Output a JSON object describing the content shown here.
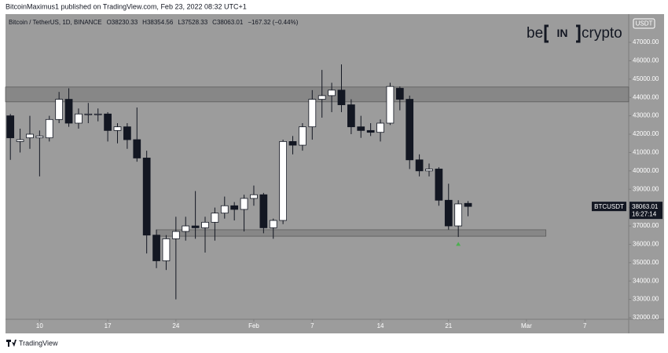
{
  "chart_data": {
    "type": "candlestick",
    "publisher_line": "BitcoinMaximus1 published on TradingView.com, Feb 23, 2022 08:32 UTC+1",
    "symbol": "Bitcoin / TetherUS, 1D, BINANCE",
    "ohlc_prefixes": [
      "O",
      "H",
      "L",
      "C"
    ],
    "change_text": "−167.32 (−0.44%)",
    "currency": "USDT",
    "ticker": "BTCUSDT",
    "countdown": "16:27:14",
    "watermark": {
      "left": "be",
      "middle": "IN",
      "right": "crypto"
    },
    "brand": "TradingView",
    "x": [
      "2022-01-07",
      "2022-01-08",
      "2022-01-09",
      "2022-01-10",
      "2022-01-11",
      "2022-01-12",
      "2022-01-13",
      "2022-01-14",
      "2022-01-15",
      "2022-01-16",
      "2022-01-17",
      "2022-01-18",
      "2022-01-19",
      "2022-01-20",
      "2022-01-21",
      "2022-01-22",
      "2022-01-23",
      "2022-01-24",
      "2022-01-25",
      "2022-01-26",
      "2022-01-27",
      "2022-01-28",
      "2022-01-29",
      "2022-01-30",
      "2022-01-31",
      "2022-02-01",
      "2022-02-02",
      "2022-02-03",
      "2022-02-04",
      "2022-02-05",
      "2022-02-06",
      "2022-02-07",
      "2022-02-08",
      "2022-02-09",
      "2022-02-10",
      "2022-02-11",
      "2022-02-12",
      "2022-02-13",
      "2022-02-14",
      "2022-02-15",
      "2022-02-16",
      "2022-02-17",
      "2022-02-18",
      "2022-02-19",
      "2022-02-20",
      "2022-02-21",
      "2022-02-22",
      "2022-02-23"
    ],
    "open": [
      43000,
      41600,
      41800,
      41800,
      41800,
      42800,
      43900,
      42600,
      43100,
      43100,
      43100,
      42200,
      42400,
      41700,
      40700,
      36500,
      35100,
      36300,
      36700,
      37000,
      36900,
      37200,
      37700,
      38100,
      37900,
      38500,
      38700,
      36900,
      37300,
      41600,
      41400,
      42400,
      43900,
      44100,
      44400,
      43600,
      42400,
      42200,
      42100,
      42600,
      44500,
      43900,
      40600,
      40000,
      40100,
      38400,
      37000,
      38230.33
    ],
    "high": [
      43100,
      42300,
      43000,
      42200,
      43000,
      44300,
      44500,
      43400,
      43700,
      43400,
      43200,
      42600,
      42600,
      43450,
      41100,
      36800,
      36500,
      37500,
      37500,
      38900,
      37500,
      38000,
      38600,
      38300,
      38700,
      39200,
      38800,
      37400,
      41700,
      41900,
      42600,
      44400,
      45500,
      44800,
      45800,
      43900,
      43000,
      42600,
      42800,
      44800,
      44600,
      44100,
      40900,
      40400,
      40200,
      39300,
      38400,
      38354.56
    ],
    "low": [
      40600,
      41000,
      41200,
      39700,
      41600,
      42600,
      42400,
      42300,
      42600,
      42700,
      41600,
      41500,
      41200,
      40500,
      35500,
      34700,
      34600,
      33000,
      36200,
      36300,
      35550,
      36200,
      37400,
      37300,
      36700,
      38100,
      36600,
      36300,
      37100,
      40900,
      41100,
      41700,
      42900,
      43200,
      43200,
      42000,
      41800,
      41900,
      41600,
      42500,
      43300,
      40100,
      39700,
      39700,
      38100,
      36800,
      36400,
      37528.33
    ],
    "close": [
      41800,
      41700,
      42000,
      41900,
      42800,
      43900,
      42600,
      43100,
      43100,
      43100,
      42200,
      42400,
      41700,
      40700,
      36500,
      35100,
      36300,
      36700,
      37000,
      36900,
      37200,
      37700,
      38100,
      37900,
      38500,
      38700,
      36900,
      37300,
      41600,
      41400,
      42400,
      43900,
      44100,
      44400,
      43600,
      42400,
      42200,
      42100,
      42600,
      44600,
      43900,
      40600,
      40000,
      40100,
      38400,
      37000,
      38200,
      38063.01
    ],
    "up_color": "#ffffff",
    "down_color": "#131722",
    "zones": [
      {
        "low": 43760,
        "high": 44570
      },
      {
        "low": 36440,
        "high": 36790,
        "x_start": "2022-01-22",
        "x_end": "2022-03-03"
      }
    ],
    "marker": {
      "x": "2022-02-22",
      "y": 36000,
      "color": "#4caf50"
    },
    "xlim": [
      "2022-01-06T12:00Z",
      "2022-03-11T12:00Z"
    ],
    "xticks": [
      {
        "value": "2022-01-10",
        "label": "10"
      },
      {
        "value": "2022-01-17",
        "label": "17"
      },
      {
        "value": "2022-01-24",
        "label": "24"
      },
      {
        "value": "2022-02-01",
        "label": "Feb"
      },
      {
        "value": "2022-02-07",
        "label": "7"
      },
      {
        "value": "2022-02-14",
        "label": "14"
      },
      {
        "value": "2022-02-21",
        "label": "21"
      },
      {
        "value": "2022-03-01",
        "label": "Mar"
      },
      {
        "value": "2022-03-07",
        "label": "7"
      }
    ],
    "ylim": [
      31915,
      48540
    ],
    "yticks": [
      {
        "value": 32000,
        "label": "32000.00"
      },
      {
        "value": 33000,
        "label": "33000.00"
      },
      {
        "value": 34000,
        "label": "34000.00"
      },
      {
        "value": 35000,
        "label": "35000.00"
      },
      {
        "value": 36000,
        "label": "36000.00"
      },
      {
        "value": 37000,
        "label": "37000.00"
      },
      {
        "value": 38000,
        "label": "38000.00"
      },
      {
        "value": 39000,
        "label": "39000.00"
      },
      {
        "value": 40000,
        "label": "40000.00"
      },
      {
        "value": 41000,
        "label": "41000.00"
      },
      {
        "value": 42000,
        "label": "42000.00"
      },
      {
        "value": 43000,
        "label": "43000.00"
      },
      {
        "value": 44000,
        "label": "44000.00"
      },
      {
        "value": 45000,
        "label": "45000.00"
      },
      {
        "value": 46000,
        "label": "46000.00"
      },
      {
        "value": 47000,
        "label": "47000.00"
      }
    ],
    "grid": false
  }
}
